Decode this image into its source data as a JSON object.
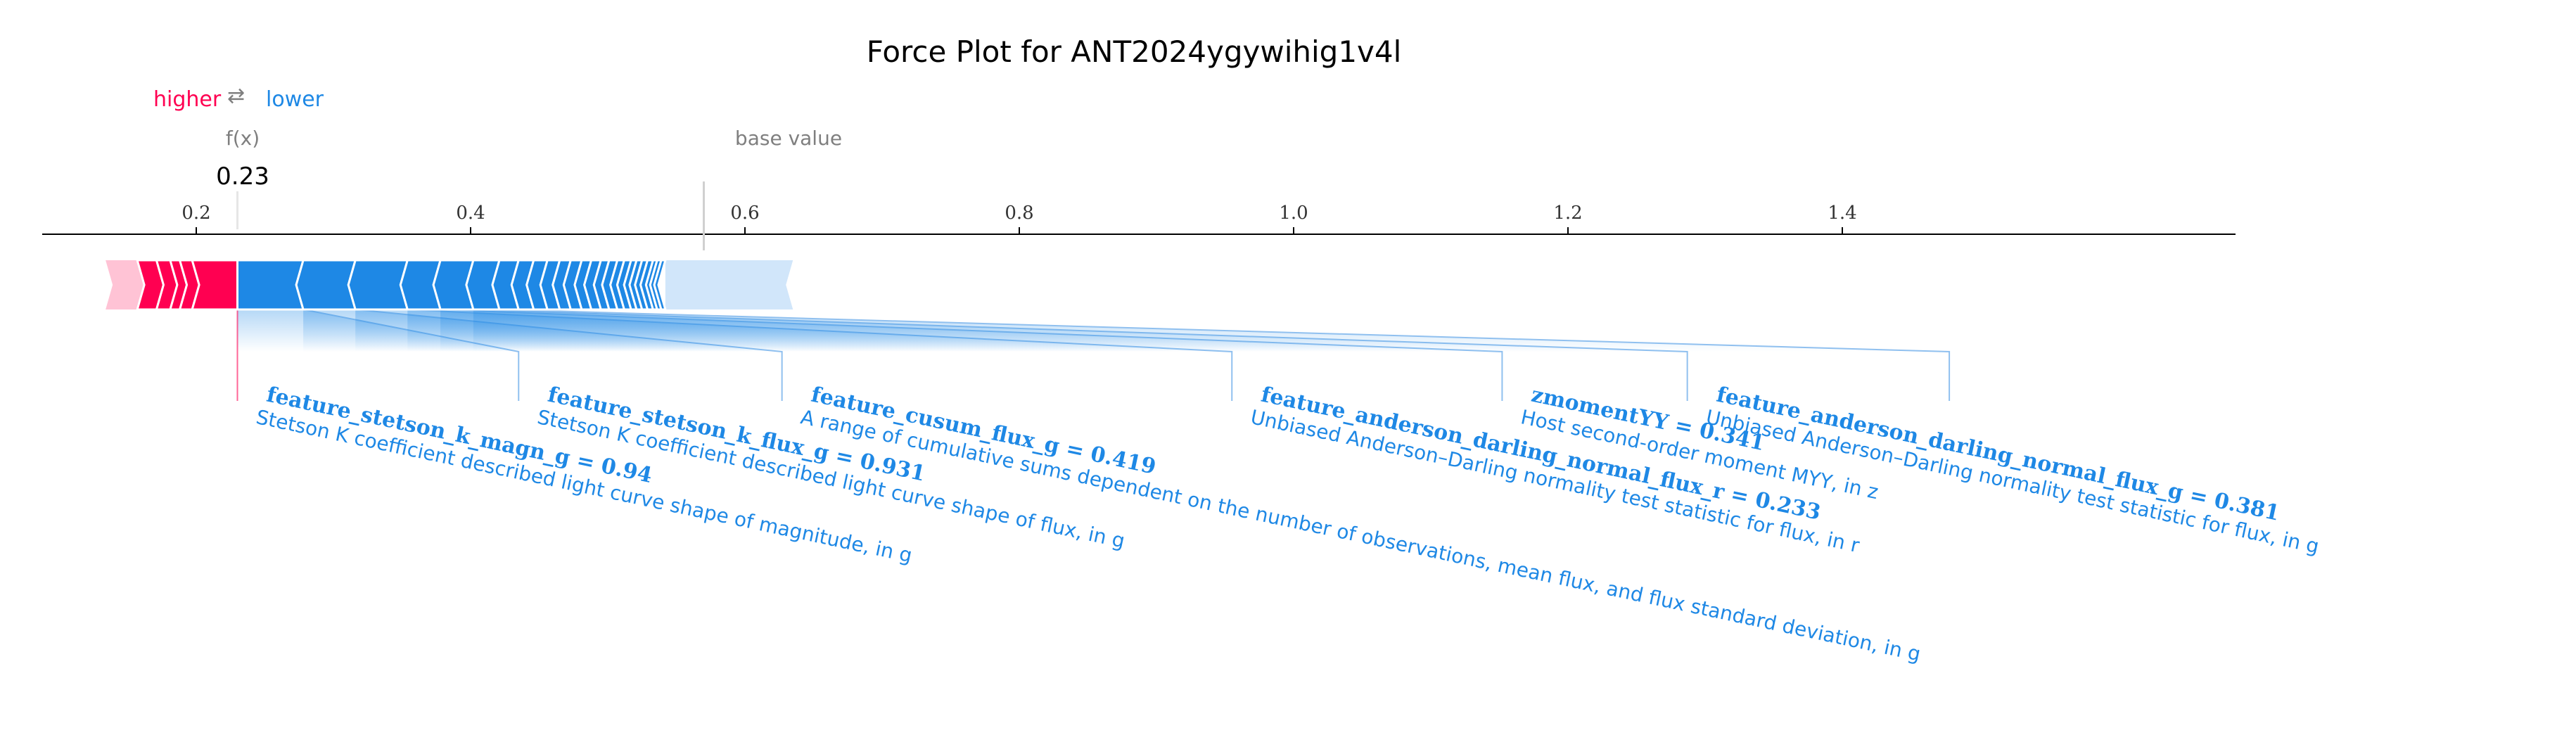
{
  "title": "Force Plot for ANT2024ygywihig1v4l",
  "legend": {
    "higher": "higher",
    "arrow": "⇄",
    "lower": "lower"
  },
  "fx_label": "f(x)",
  "fx_value": "0.23",
  "base_value_label": "base value",
  "colors": {
    "positive": "#ff0051",
    "negative": "#1e88e5",
    "positive_light": "#ffc3d5",
    "negative_light": "#d1e6fa",
    "axis": "#000000",
    "marker": "#d0d0d0"
  },
  "chart_data": {
    "type": "force",
    "title": "Force Plot for ANT2024ygywihig1v4l",
    "output_value": 0.23,
    "base_value": 0.57,
    "xlim": [
      -0.0,
      1.48
    ],
    "ticks": [
      0.2,
      0.4,
      0.6,
      0.8,
      1.0,
      1.2,
      1.4
    ],
    "tick_labels": [
      "0.2",
      "0.4",
      "0.6",
      "0.8",
      "1.0",
      "1.2",
      "1.4"
    ],
    "positive_segments": [
      {
        "start": 0.157,
        "end": 0.171
      },
      {
        "start": 0.171,
        "end": 0.181
      },
      {
        "start": 0.181,
        "end": 0.188
      },
      {
        "start": 0.188,
        "end": 0.197
      },
      {
        "start": 0.197,
        "end": 0.23
      }
    ],
    "negative_segments": [
      {
        "start": 0.23,
        "end": 0.278
      },
      {
        "start": 0.278,
        "end": 0.316
      },
      {
        "start": 0.316,
        "end": 0.354
      },
      {
        "start": 0.354,
        "end": 0.378
      },
      {
        "start": 0.378,
        "end": 0.402
      },
      {
        "start": 0.402,
        "end": 0.421
      },
      {
        "start": 0.421,
        "end": 0.435
      },
      {
        "start": 0.435,
        "end": 0.446
      },
      {
        "start": 0.446,
        "end": 0.456
      },
      {
        "start": 0.456,
        "end": 0.465
      },
      {
        "start": 0.465,
        "end": 0.473
      },
      {
        "start": 0.473,
        "end": 0.481
      },
      {
        "start": 0.481,
        "end": 0.488
      },
      {
        "start": 0.488,
        "end": 0.495
      },
      {
        "start": 0.495,
        "end": 0.501
      },
      {
        "start": 0.501,
        "end": 0.507
      },
      {
        "start": 0.507,
        "end": 0.512
      },
      {
        "start": 0.512,
        "end": 0.517
      },
      {
        "start": 0.517,
        "end": 0.521
      },
      {
        "start": 0.521,
        "end": 0.525
      },
      {
        "start": 0.525,
        "end": 0.529
      },
      {
        "start": 0.529,
        "end": 0.533
      },
      {
        "start": 0.533,
        "end": 0.536
      },
      {
        "start": 0.536,
        "end": 0.539
      },
      {
        "start": 0.539,
        "end": 0.542
      }
    ],
    "negative_tail": {
      "start": 0.542,
      "end": 0.635
    },
    "features": [
      {
        "name": "feature_stetson_k_magn_g",
        "value": "0.94",
        "description": "Stetson K coefficient described light curve shape of magnitude, in g",
        "bar_start": 0.23,
        "bar_end": 0.278,
        "label_at": 0.435
      },
      {
        "name": "feature_stetson_k_flux_g",
        "value": "0.931",
        "description": "Stetson K coefficient described light curve shape of flux, in g",
        "bar_start": 0.278,
        "bar_end": 0.316,
        "label_at": 0.627
      },
      {
        "name": "feature_cusum_flux_g",
        "value": "0.419",
        "description": "A range of cumulative sums dependent on the number of observations, mean flux, and flux standard deviation, in g",
        "bar_start": 0.316,
        "bar_end": 0.354,
        "label_at": 0.955
      },
      {
        "name": "feature_anderson_darling_normal_flux_r",
        "value": "0.233",
        "description": "Unbiased Anderson–Darling normality test statistic for flux, in r",
        "bar_start": 0.354,
        "bar_end": 0.378,
        "label_at": 1.152
      },
      {
        "name": "zmomentYY",
        "value": "0.341",
        "description": "Host second-order moment MYY, in z",
        "bar_start": 0.378,
        "bar_end": 0.402,
        "label_at": 1.287
      },
      {
        "name": "feature_anderson_darling_normal_flux_g",
        "value": "0.381",
        "description": "Unbiased Anderson–Darling normality test statistic for flux, in g",
        "bar_start": 0.402,
        "bar_end": 0.421,
        "label_at": 1.478
      }
    ]
  }
}
